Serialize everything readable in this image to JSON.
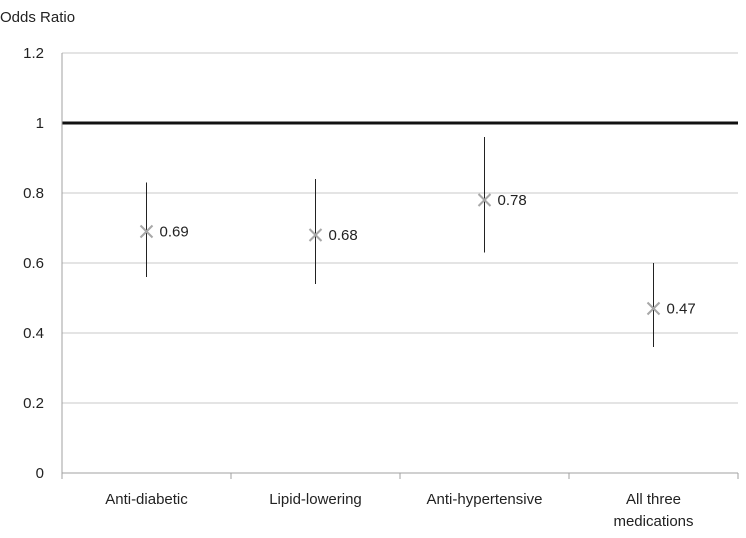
{
  "chart_data": {
    "type": "scatter",
    "ylabel": "Odds Ratio",
    "ylim": [
      0,
      1.2
    ],
    "yticks": [
      0,
      0.2,
      0.4,
      0.6,
      0.8,
      1,
      1.2
    ],
    "ytick_labels": [
      "0",
      "0.2",
      "0.4",
      "0.6",
      "0.8",
      "1",
      "1.2"
    ],
    "grid": "horizontal",
    "reference_line": 1,
    "categories": [
      [
        "Anti-diabetic"
      ],
      [
        "Lipid-lowering"
      ],
      [
        "Anti-hypertensive"
      ],
      [
        "All three",
        "medications"
      ]
    ],
    "points": [
      {
        "value": 0.69,
        "label": "0.69",
        "lower": 0.56,
        "upper": 0.83
      },
      {
        "value": 0.68,
        "label": "0.68",
        "lower": 0.54,
        "upper": 0.84
      },
      {
        "value": 0.78,
        "label": "0.78",
        "lower": 0.63,
        "upper": 0.96
      },
      {
        "value": 0.47,
        "label": "0.47",
        "lower": 0.36,
        "upper": 0.6
      }
    ],
    "colors": {
      "grid": "#c8c8c8",
      "axis": "#a0a0a0",
      "reference": "#111111",
      "marker": "#a8a8a8",
      "errorbar": "#222222"
    }
  }
}
